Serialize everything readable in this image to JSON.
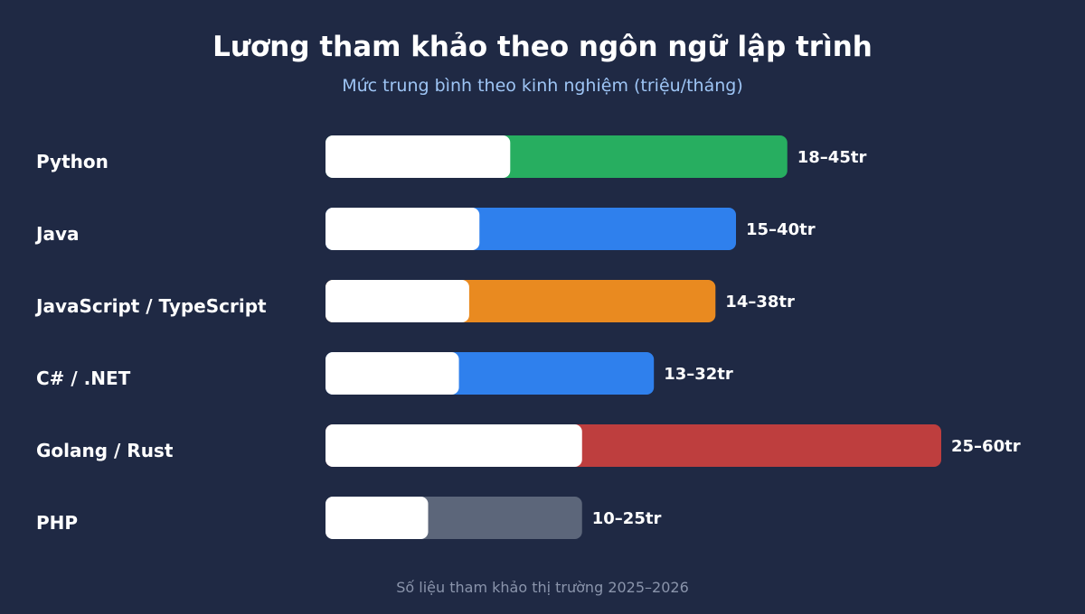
{
  "chart_data": {
    "type": "bar",
    "orientation": "horizontal",
    "title": "Lương tham khảo theo ngôn ngữ lập trình",
    "subtitle": "Mức trung bình theo kinh nghiệm (triệu/tháng)",
    "footer": "Số liệu tham khảo thị trường 2025–2026",
    "xlim": [
      0,
      60
    ],
    "grid": false,
    "legend": "none",
    "categories": [
      "Python",
      "Java",
      "JavaScript / TypeScript",
      "C# / .NET",
      "Golang / Rust",
      "PHP"
    ],
    "series": [
      {
        "values": [
          18,
          15,
          14,
          13,
          25,
          10
        ]
      },
      {
        "values": [
          45,
          40,
          38,
          32,
          60,
          25
        ]
      }
    ],
    "data_labels": [
      "18–45tr",
      "15–40tr",
      "14–38tr",
      "13–32tr",
      "25–60tr",
      "10–25tr"
    ],
    "colors": [
      "#27ae60",
      "#2f80ed",
      "#e98a20",
      "#2f80ed",
      "#be3e3e",
      "#5c667a"
    ],
    "min_bar_color": "#ffffff"
  }
}
